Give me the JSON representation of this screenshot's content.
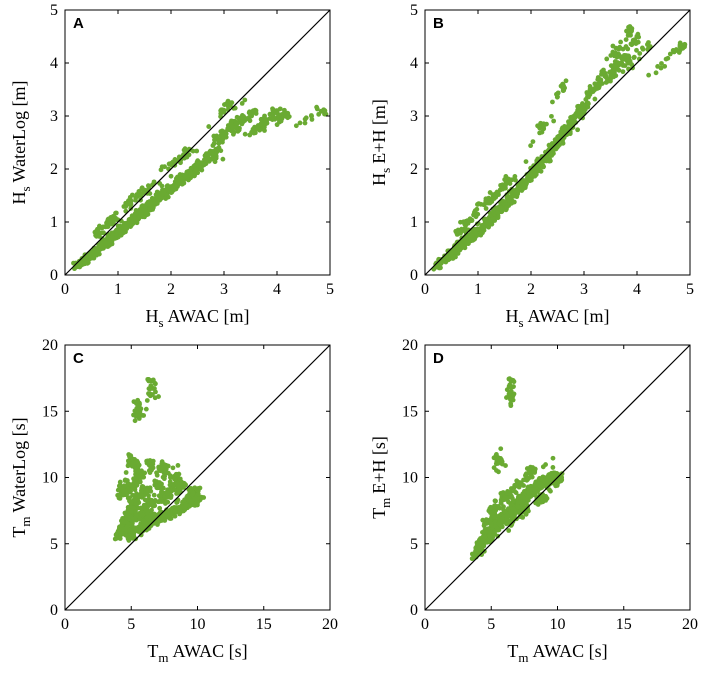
{
  "point_color": "#6aaa32",
  "chart_data": [
    {
      "type": "scatter",
      "panel": "A",
      "xlabel_main": "H",
      "xlabel_sub": "s",
      "xlabel_rest": "AWAC [m]",
      "ylabel_main": "H",
      "ylabel_sub": "s",
      "ylabel_rest": "WaterLog [m]",
      "xlim": [
        0,
        5
      ],
      "ylim": [
        0,
        5
      ],
      "xticks": [
        0,
        1,
        2,
        3,
        4,
        5
      ],
      "yticks": [
        0,
        1,
        2,
        3,
        4,
        5
      ],
      "reference_line": "y = x",
      "points": [
        [
          0.2,
          0.15
        ],
        [
          0.3,
          0.22
        ],
        [
          0.4,
          0.3
        ],
        [
          0.5,
          0.38
        ],
        [
          0.6,
          0.45
        ],
        [
          0.7,
          0.55
        ],
        [
          0.8,
          0.62
        ],
        [
          0.9,
          0.7
        ],
        [
          1.0,
          0.8
        ],
        [
          1.1,
          0.88
        ],
        [
          1.2,
          0.95
        ],
        [
          1.3,
          1.05
        ],
        [
          1.4,
          1.12
        ],
        [
          1.5,
          1.2
        ],
        [
          1.6,
          1.3
        ],
        [
          1.7,
          1.38
        ],
        [
          1.8,
          1.45
        ],
        [
          1.9,
          1.55
        ],
        [
          2.0,
          1.62
        ],
        [
          2.1,
          1.7
        ],
        [
          2.2,
          1.8
        ],
        [
          2.3,
          1.85
        ],
        [
          2.4,
          1.95
        ],
        [
          2.5,
          2.0
        ],
        [
          2.6,
          2.1
        ],
        [
          2.7,
          2.2
        ],
        [
          2.8,
          2.3
        ],
        [
          3.0,
          2.6
        ],
        [
          3.2,
          2.9
        ],
        [
          3.4,
          2.95
        ],
        [
          3.6,
          3.1
        ],
        [
          3.8,
          2.9
        ],
        [
          4.0,
          3.1
        ],
        [
          4.2,
          3.05
        ],
        [
          4.9,
          3.1
        ],
        [
          3.1,
          3.25
        ],
        [
          2.3,
          2.3
        ],
        [
          2.0,
          2.1
        ],
        [
          1.5,
          1.6
        ],
        [
          1.2,
          1.4
        ],
        [
          0.8,
          1.0
        ],
        [
          0.6,
          0.8
        ]
      ]
    },
    {
      "type": "scatter",
      "panel": "B",
      "xlabel_main": "H",
      "xlabel_sub": "s",
      "xlabel_rest": "AWAC [m]",
      "ylabel_main": "H",
      "ylabel_sub": "s",
      "ylabel_rest": "E+H [m]",
      "xlim": [
        0,
        5
      ],
      "ylim": [
        0,
        5
      ],
      "xticks": [
        0,
        1,
        2,
        3,
        4,
        5
      ],
      "yticks": [
        0,
        1,
        2,
        3,
        4,
        5
      ],
      "reference_line": "y = x",
      "points": [
        [
          0.2,
          0.15
        ],
        [
          0.3,
          0.22
        ],
        [
          0.4,
          0.3
        ],
        [
          0.5,
          0.38
        ],
        [
          0.6,
          0.48
        ],
        [
          0.7,
          0.55
        ],
        [
          0.8,
          0.65
        ],
        [
          0.9,
          0.72
        ],
        [
          1.0,
          0.82
        ],
        [
          1.1,
          0.9
        ],
        [
          1.2,
          1.0
        ],
        [
          1.3,
          1.1
        ],
        [
          1.4,
          1.2
        ],
        [
          1.5,
          1.3
        ],
        [
          1.6,
          1.4
        ],
        [
          1.7,
          1.5
        ],
        [
          1.8,
          1.62
        ],
        [
          1.9,
          1.75
        ],
        [
          2.0,
          1.85
        ],
        [
          2.1,
          2.0
        ],
        [
          2.2,
          2.1
        ],
        [
          2.3,
          2.2
        ],
        [
          2.4,
          2.35
        ],
        [
          2.5,
          2.5
        ],
        [
          2.6,
          2.6
        ],
        [
          2.7,
          2.75
        ],
        [
          2.8,
          2.9
        ],
        [
          3.0,
          3.2
        ],
        [
          3.2,
          3.5
        ],
        [
          3.4,
          3.8
        ],
        [
          3.6,
          3.9
        ],
        [
          3.8,
          4.1
        ],
        [
          4.0,
          4.5
        ],
        [
          4.2,
          4.35
        ],
        [
          4.9,
          4.35
        ],
        [
          3.9,
          4.65
        ],
        [
          2.6,
          3.6
        ],
        [
          2.2,
          2.8
        ],
        [
          1.5,
          1.7
        ],
        [
          1.2,
          1.4
        ],
        [
          0.8,
          1.0
        ],
        [
          0.6,
          0.8
        ]
      ]
    },
    {
      "type": "scatter",
      "panel": "C",
      "xlabel_main": "T",
      "xlabel_sub": "m",
      "xlabel_rest": "AWAC [s]",
      "ylabel_main": "T",
      "ylabel_sub": "m",
      "ylabel_rest": "WaterLog [s]",
      "xlim": [
        0,
        20
      ],
      "ylim": [
        0,
        20
      ],
      "xticks": [
        0,
        5,
        10,
        15,
        20
      ],
      "yticks": [
        0,
        5,
        10,
        15,
        20
      ],
      "reference_line": "y = x",
      "points": [
        [
          4.0,
          5.6
        ],
        [
          4.3,
          6.0
        ],
        [
          4.5,
          6.5
        ],
        [
          4.7,
          7.0
        ],
        [
          5.0,
          5.5
        ],
        [
          5.0,
          7.5
        ],
        [
          5.2,
          8.0
        ],
        [
          5.5,
          6.0
        ],
        [
          5.5,
          8.5
        ],
        [
          6.0,
          6.2
        ],
        [
          6.0,
          7.0
        ],
        [
          6.0,
          9.0
        ],
        [
          6.5,
          6.5
        ],
        [
          6.5,
          8.0
        ],
        [
          7.0,
          6.8
        ],
        [
          7.0,
          9.5
        ],
        [
          7.5,
          7.0
        ],
        [
          7.5,
          8.5
        ],
        [
          8.0,
          7.2
        ],
        [
          8.0,
          9.0
        ],
        [
          8.5,
          7.5
        ],
        [
          9.0,
          7.8
        ],
        [
          9.0,
          9.5
        ],
        [
          9.5,
          8.0
        ],
        [
          10.0,
          8.2
        ],
        [
          10.3,
          8.5
        ],
        [
          10.0,
          9.0
        ],
        [
          5.0,
          11.2
        ],
        [
          5.5,
          10.3
        ],
        [
          6.5,
          11.0
        ],
        [
          5.4,
          15.6
        ],
        [
          6.5,
          17.3
        ],
        [
          7.5,
          10.8
        ],
        [
          8.5,
          10.0
        ],
        [
          4.2,
          9.0
        ],
        [
          4.8,
          9.5
        ]
      ]
    },
    {
      "type": "scatter",
      "panel": "D",
      "xlabel_main": "T",
      "xlabel_sub": "m",
      "xlabel_rest": "AWAC [s]",
      "ylabel_main": "T",
      "ylabel_sub": "m",
      "ylabel_rest": "E+H [s]",
      "xlim": [
        0,
        20
      ],
      "ylim": [
        0,
        20
      ],
      "xticks": [
        0,
        5,
        10,
        15,
        20
      ],
      "yticks": [
        0,
        5,
        10,
        15,
        20
      ],
      "reference_line": "y = x",
      "points": [
        [
          3.7,
          4.0
        ],
        [
          4.0,
          4.5
        ],
        [
          4.2,
          5.0
        ],
        [
          4.5,
          5.2
        ],
        [
          4.8,
          5.5
        ],
        [
          5.0,
          6.0
        ],
        [
          5.2,
          6.2
        ],
        [
          5.5,
          6.5
        ],
        [
          5.8,
          6.8
        ],
        [
          6.0,
          7.0
        ],
        [
          6.3,
          7.2
        ],
        [
          6.5,
          7.5
        ],
        [
          6.8,
          7.8
        ],
        [
          7.0,
          8.0
        ],
        [
          7.3,
          8.2
        ],
        [
          7.5,
          8.5
        ],
        [
          7.8,
          8.8
        ],
        [
          8.0,
          9.0
        ],
        [
          8.3,
          9.2
        ],
        [
          8.5,
          9.5
        ],
        [
          9.0,
          9.8
        ],
        [
          9.5,
          10.0
        ],
        [
          10.0,
          10.2
        ],
        [
          10.3,
          10.0
        ],
        [
          5.0,
          7.5
        ],
        [
          6.0,
          8.5
        ],
        [
          7.0,
          9.5
        ],
        [
          8.0,
          10.5
        ],
        [
          6.5,
          6.5
        ],
        [
          7.5,
          7.5
        ],
        [
          5.5,
          11.5
        ],
        [
          6.5,
          17.3
        ],
        [
          9.0,
          8.5
        ],
        [
          4.5,
          6.5
        ]
      ]
    }
  ]
}
